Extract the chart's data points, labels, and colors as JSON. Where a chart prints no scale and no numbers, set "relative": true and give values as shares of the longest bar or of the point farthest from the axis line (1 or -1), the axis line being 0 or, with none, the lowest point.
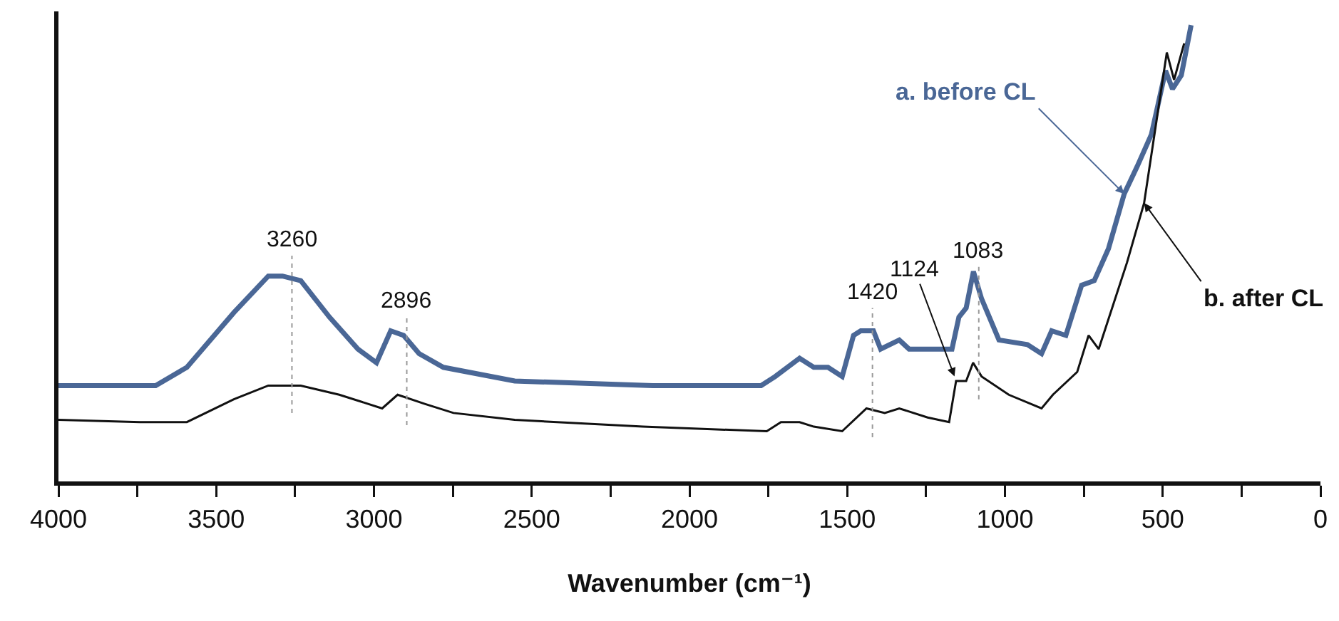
{
  "chart_data": {
    "type": "line",
    "relative": true,
    "xlabel": "Wavenumber (cm⁻¹)",
    "xlim": [
      4000,
      0
    ],
    "xticks": [
      4000,
      {
        "value": 3750,
        "label": null
      },
      3500,
      {
        "value": 3250,
        "label": null
      },
      3000,
      {
        "value": 2750,
        "label": null
      },
      2500,
      {
        "value": 2250,
        "label": null
      },
      2000,
      {
        "value": 1750,
        "label": null
      },
      1500,
      {
        "value": 1250,
        "label": null
      },
      1000,
      {
        "value": 750,
        "label": null
      },
      500,
      {
        "value": 250,
        "label": null
      },
      0
    ],
    "tick_labels": "x",
    "grid": false,
    "legend": false,
    "marker": "none",
    "series": [
      {
        "name": "a. before CL",
        "color": "#4a6796",
        "x": [
          4000,
          3692,
          3593,
          3444,
          3335,
          3290,
          3232,
          3141,
          3051,
          2992,
          2947,
          2906,
          2857,
          2780,
          2554,
          2116,
          1773,
          1728,
          1651,
          1606,
          1561,
          1516,
          1480,
          1457,
          1417,
          1394,
          1335,
          1304,
          1245,
          1168,
          1146,
          1123,
          1100,
          1074,
          1019,
          929,
          884,
          852,
          807,
          757,
          717,
          672,
          622,
          581,
          536,
          491,
          469,
          441,
          410
        ],
        "values": [
          0.21,
          0.21,
          0.25,
          0.37,
          0.45,
          0.45,
          0.44,
          0.36,
          0.29,
          0.26,
          0.33,
          0.32,
          0.28,
          0.25,
          0.22,
          0.21,
          0.21,
          0.23,
          0.27,
          0.25,
          0.25,
          0.23,
          0.32,
          0.33,
          0.33,
          0.29,
          0.31,
          0.29,
          0.29,
          0.29,
          0.36,
          0.38,
          0.46,
          0.4,
          0.31,
          0.3,
          0.28,
          0.33,
          0.32,
          0.43,
          0.44,
          0.51,
          0.63,
          0.69,
          0.76,
          0.9,
          0.86,
          0.89,
          1.0
        ]
      },
      {
        "name": "b. after CL",
        "color": "#111111",
        "x": [
          4000,
          3742,
          3593,
          3444,
          3335,
          3232,
          3110,
          2974,
          2925,
          2839,
          2748,
          2554,
          2148,
          1755,
          1710,
          1651,
          1606,
          1516,
          1439,
          1381,
          1335,
          1245,
          1177,
          1155,
          1123,
          1101,
          1074,
          988,
          884,
          848,
          771,
          735,
          703,
          613,
          559,
          487,
          464,
          432
        ],
        "values": [
          0.135,
          0.13,
          0.13,
          0.18,
          0.21,
          0.21,
          0.19,
          0.16,
          0.19,
          0.17,
          0.15,
          0.135,
          0.12,
          0.11,
          0.13,
          0.13,
          0.12,
          0.11,
          0.16,
          0.15,
          0.16,
          0.14,
          0.13,
          0.22,
          0.22,
          0.26,
          0.23,
          0.19,
          0.16,
          0.19,
          0.24,
          0.32,
          0.29,
          0.48,
          0.61,
          0.94,
          0.88,
          0.96
        ]
      }
    ],
    "ref_lines": [
      {
        "axis": "x",
        "value": 3260,
        "label": "3260",
        "color": "#999999",
        "line_style": "dotted"
      },
      {
        "axis": "x",
        "value": 2896,
        "label": "2896",
        "color": "#999999",
        "line_style": "dotted"
      },
      {
        "axis": "x",
        "value": 1420,
        "label": "1420",
        "color": "#999999",
        "line_style": "dotted"
      },
      {
        "axis": "x",
        "value": 1083,
        "label": "1083",
        "color": "#999999",
        "line_style": "dotted"
      }
    ],
    "annotations": [
      {
        "text": "1124",
        "x": 1160,
        "y": 0.23
      }
    ]
  }
}
